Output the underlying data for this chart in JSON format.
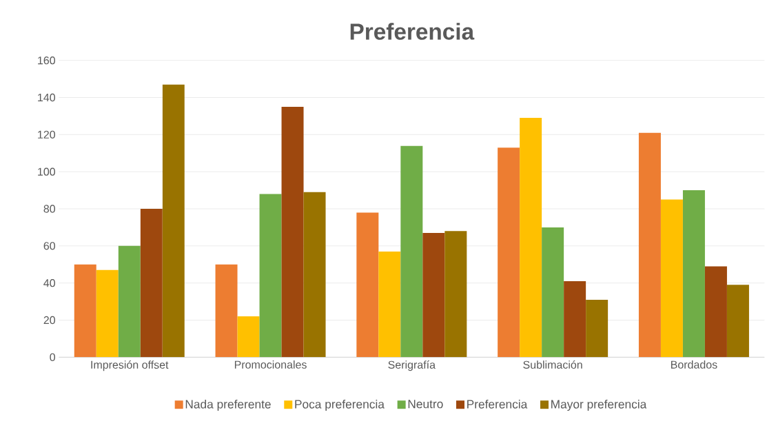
{
  "chart_data": {
    "type": "bar",
    "title": "Preferencia",
    "categories": [
      "Impresión offset",
      "Promocionales",
      "Serigrafía",
      "Sublimación",
      "Bordados"
    ],
    "series": [
      {
        "name": "Nada preferente",
        "color": "#ed7d31",
        "values": [
          50,
          50,
          78,
          113,
          121
        ]
      },
      {
        "name": "Poca preferencia",
        "color": "#ffc000",
        "values": [
          47,
          22,
          57,
          129,
          85
        ]
      },
      {
        "name": "Neutro",
        "color": "#70ad47",
        "values": [
          60,
          88,
          114,
          70,
          90
        ]
      },
      {
        "name": "Preferencia",
        "color": "#9e480e",
        "values": [
          80,
          135,
          67,
          41,
          49
        ]
      },
      {
        "name": "Mayor preferencia",
        "color": "#997300",
        "values": [
          147,
          89,
          68,
          31,
          39
        ]
      }
    ],
    "ylim": [
      0,
      160
    ],
    "yticks": [
      0,
      20,
      40,
      60,
      80,
      100,
      120,
      140,
      160
    ],
    "grid": "y",
    "legend": "bottom"
  }
}
